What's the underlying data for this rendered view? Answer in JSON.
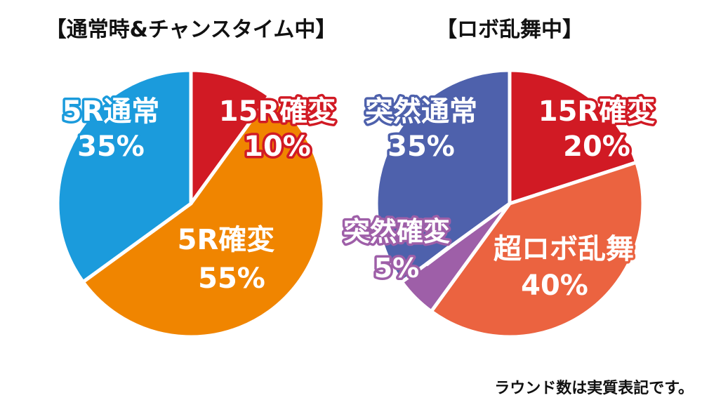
{
  "chart_data": [
    {
      "type": "pie",
      "title": "【通常時&チャンスタイム中】",
      "slices": [
        {
          "label": "15R確変",
          "value": 10,
          "value_text": "10%",
          "color": "#D11A24"
        },
        {
          "label": "5R確変",
          "value": 55,
          "value_text": "55%",
          "color": "#F08500"
        },
        {
          "label": "5R通常",
          "value": 35,
          "value_text": "35%",
          "color": "#1B9BDC"
        }
      ]
    },
    {
      "type": "pie",
      "title": "【ロボ乱舞中】",
      "slices": [
        {
          "label": "15R確変",
          "value": 20,
          "value_text": "20%",
          "color": "#D11A24"
        },
        {
          "label": "超ロボ乱舞",
          "value": 40,
          "value_text": "40%",
          "color": "#EB6340"
        },
        {
          "label": "突然確変",
          "value": 5,
          "value_text": "5%",
          "color": "#9E5FA8"
        },
        {
          "label": "突然通常",
          "value": 35,
          "value_text": "35%",
          "color": "#4E61AC"
        }
      ]
    }
  ],
  "footnote": "ラウンド数は実質表記です。"
}
